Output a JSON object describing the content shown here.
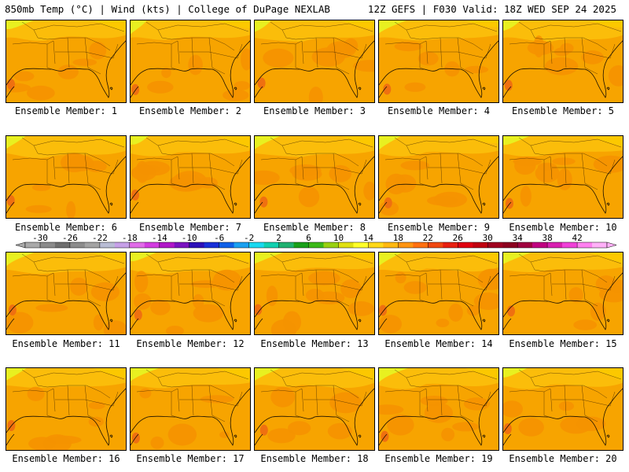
{
  "header": {
    "left_title": "850mb Temp (°C) | Wind (kts) | College of DuPage NEXLAB",
    "right_title": "12Z GEFS | F030 Valid: 18Z WED SEP 24 2025"
  },
  "panels": [
    {
      "label": "Ensemble Member: 1"
    },
    {
      "label": "Ensemble Member: 2"
    },
    {
      "label": "Ensemble Member: 3"
    },
    {
      "label": "Ensemble Member: 4"
    },
    {
      "label": "Ensemble Member: 5"
    },
    {
      "label": "Ensemble Member: 6"
    },
    {
      "label": "Ensemble Member: 7"
    },
    {
      "label": "Ensemble Member: 8"
    },
    {
      "label": "Ensemble Member: 9"
    },
    {
      "label": "Ensemble Member: 10"
    },
    {
      "label": "Ensemble Member: 11"
    },
    {
      "label": "Ensemble Member: 12"
    },
    {
      "label": "Ensemble Member: 13"
    },
    {
      "label": "Ensemble Member: 14"
    },
    {
      "label": "Ensemble Member: 15"
    },
    {
      "label": "Ensemble Member: 16"
    },
    {
      "label": "Ensemble Member: 17"
    },
    {
      "label": "Ensemble Member: 18"
    },
    {
      "label": "Ensemble Member: 19"
    },
    {
      "label": "Ensemble Member: 20"
    }
  ],
  "colorbar": {
    "tick_labels": [
      "-30",
      "-26",
      "-22",
      "-18",
      "-14",
      "-10",
      "-6",
      "-2",
      "2",
      "6",
      "10",
      "14",
      "18",
      "22",
      "26",
      "30",
      "34",
      "38",
      "42"
    ],
    "colors": [
      "#a9a9a9",
      "#8a8a8a",
      "#6e6e6e",
      "#8c8c8c",
      "#a3a3a3",
      "#b8bcd4",
      "#c6a0e8",
      "#e06be8",
      "#d23be0",
      "#b016c8",
      "#7a12c0",
      "#2d10b8",
      "#1830d8",
      "#0f60e8",
      "#1aa0f0",
      "#18d8f0",
      "#10d0b0",
      "#20b070",
      "#18a018",
      "#3cb818",
      "#98d010",
      "#e0e010",
      "#ffff28",
      "#ffd818",
      "#ffb810",
      "#ff9410",
      "#ff7010",
      "#f04810",
      "#e82010",
      "#e00010",
      "#c00010",
      "#a00020",
      "#8c0020",
      "#a00040",
      "#c00080",
      "#d820b0",
      "#f040d8",
      "#ff80f0",
      "#ffb0f8"
    ]
  }
}
